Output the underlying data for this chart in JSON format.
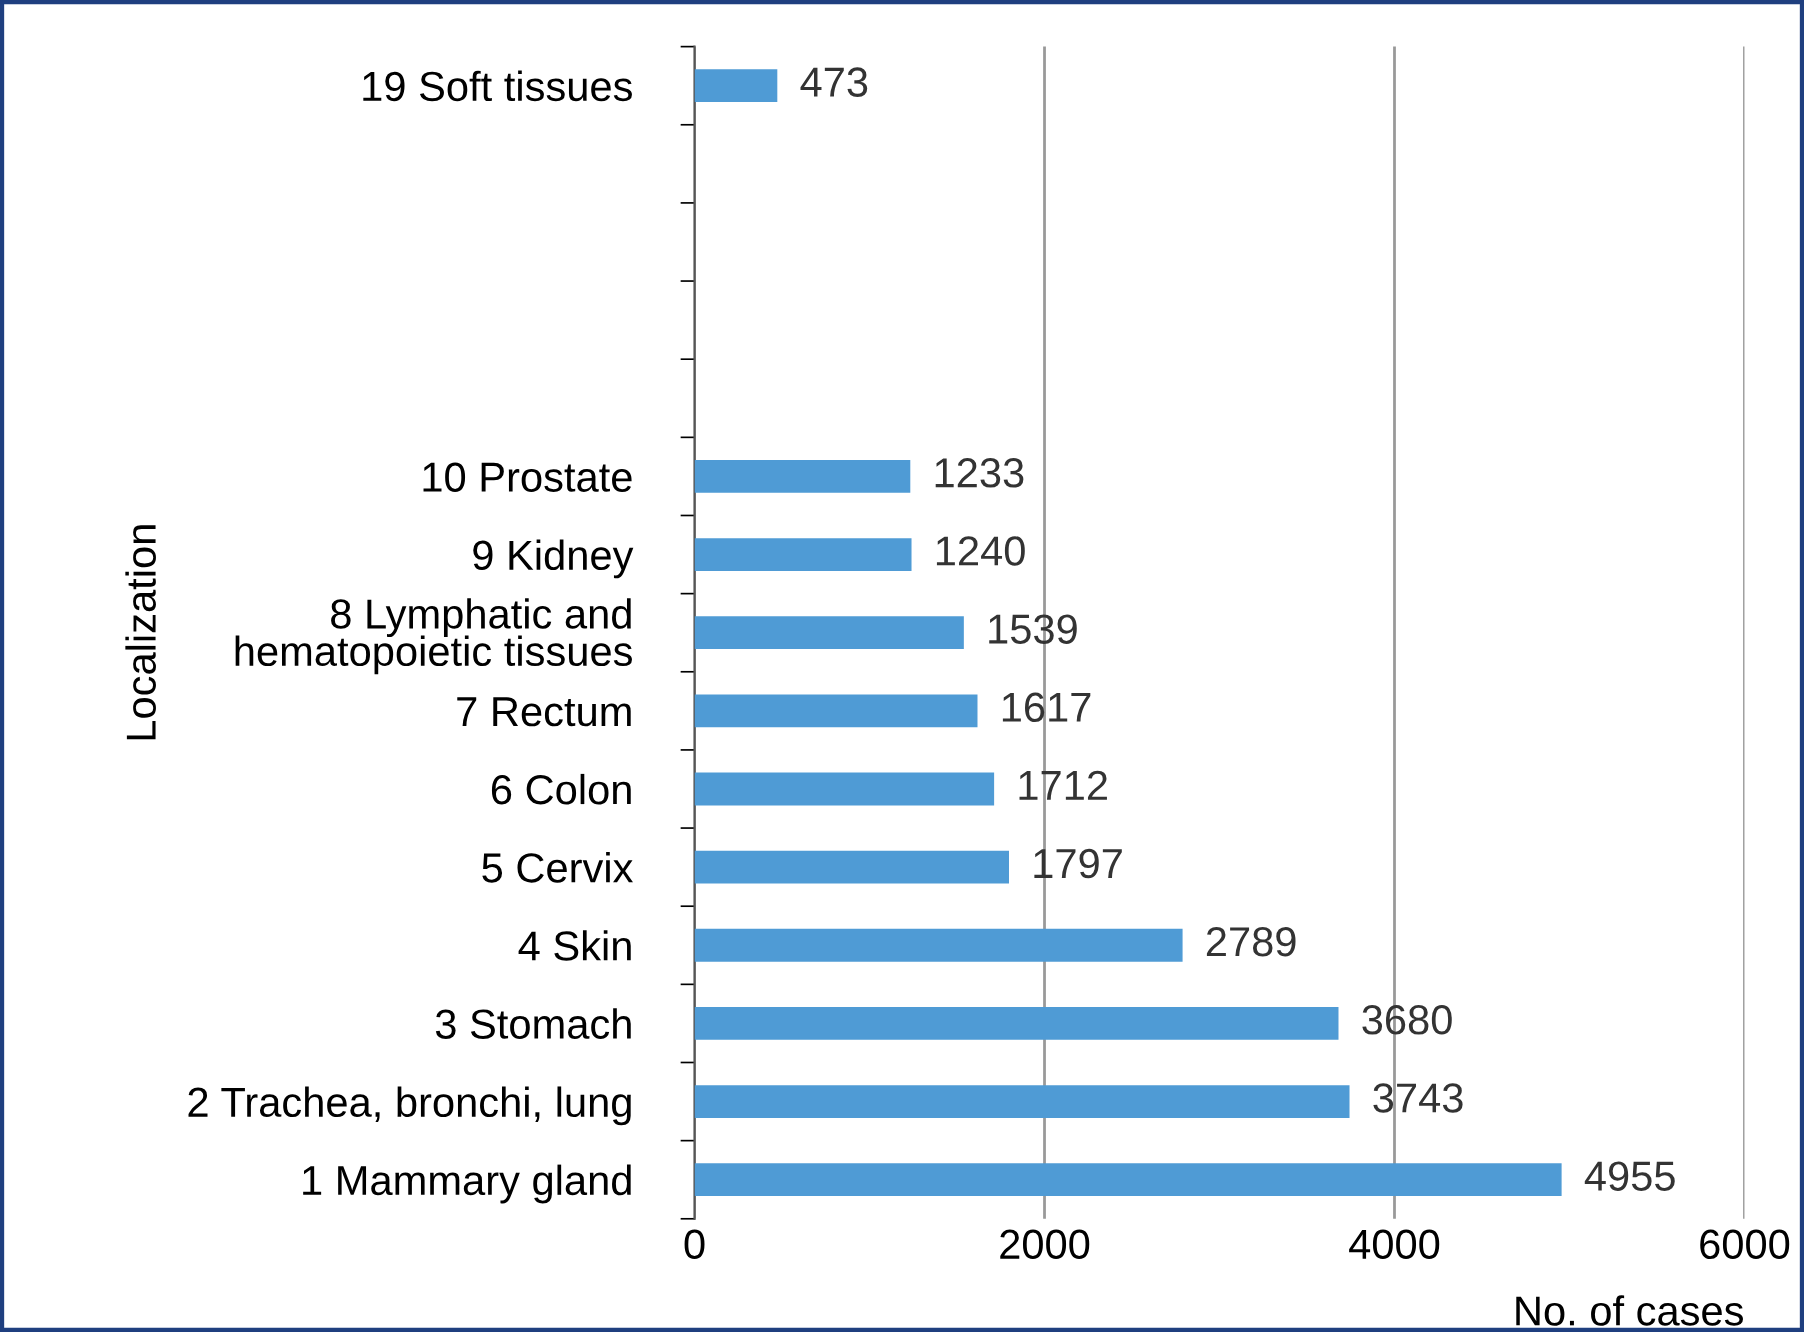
{
  "chart_data": {
    "type": "bar",
    "orientation": "horizontal",
    "xlabel": "No. of cases",
    "ylabel": "Localization",
    "categories": [
      "19 Soft tissues",
      null,
      null,
      null,
      null,
      "10 Prostate",
      "9 Kidney",
      "8 Lymphatic and\nhematopoietic tissues",
      "7 Rectum",
      "6 Colon",
      "5 Cervix",
      "4 Skin",
      "3 Stomach",
      "2 Trachea, bronchi, lung",
      "1 Mammary gland"
    ],
    "values": [
      473,
      null,
      null,
      null,
      null,
      1233,
      1240,
      1539,
      1617,
      1712,
      1797,
      2789,
      3680,
      3743,
      4955
    ],
    "color": "#4f9bd5",
    "xlim": [
      0,
      6000
    ],
    "xticks": [
      0,
      2000,
      4000,
      6000
    ],
    "grid": "x",
    "data_labels": true
  }
}
